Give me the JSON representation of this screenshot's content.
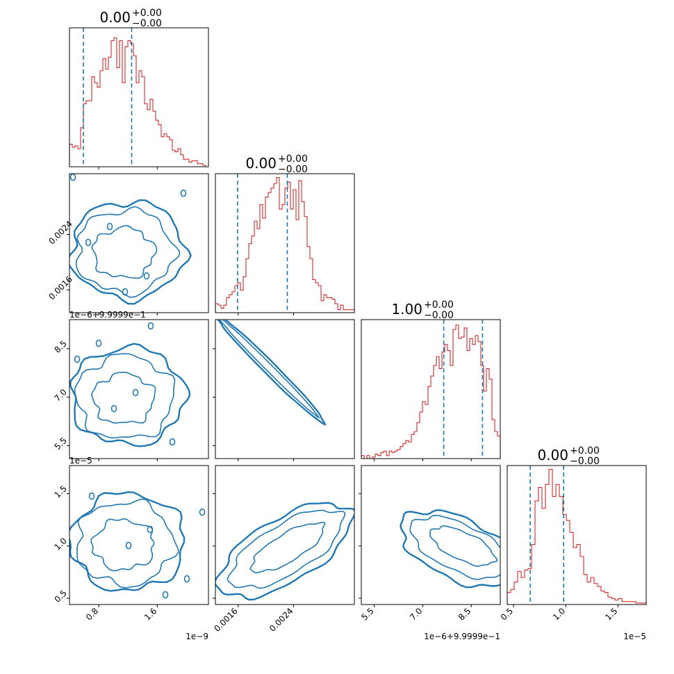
{
  "chart_data": {
    "type": "corner",
    "parameters": 4,
    "titles": [
      {
        "value": "0.00",
        "plus": "+0.00",
        "minus": "−0.00"
      },
      {
        "value": "0.00",
        "plus": "+0.00",
        "minus": "−0.00"
      },
      {
        "value": "1.00",
        "plus": "+0.00",
        "minus": "−0.00"
      },
      {
        "value": "0.00",
        "plus": "+0.00",
        "minus": "−0.00"
      }
    ],
    "axes": [
      {
        "range": [
          4e-10,
          2.3e-09
        ],
        "ticks": [
          8e-10,
          1.6e-09
        ],
        "tick_labels": [
          "0.8",
          "1.6"
        ],
        "offset_text": "1e−9"
      },
      {
        "range": [
          0.00127,
          0.00328
        ],
        "ticks": [
          0.0016,
          0.0024
        ],
        "tick_labels": [
          "0.0016",
          "0.0024"
        ],
        "offset_text": ""
      },
      {
        "range": [
          5.1,
          9.4
        ],
        "ticks": [
          5.5,
          7.0,
          8.5
        ],
        "tick_labels": [
          "5.5",
          "7.0",
          "8.5"
        ],
        "offset_text": "1e−6+9.9999e−1"
      },
      {
        "range": [
          0.44,
          1.77
        ],
        "ticks": [
          0.5,
          1.0,
          1.5
        ],
        "tick_labels": [
          "0.5",
          "1.0",
          "1.5"
        ],
        "offset_text": "1e−5"
      }
    ],
    "quantiles": [
      [
        5.9e-10,
        1.25e-09
      ],
      [
        0.00159,
        0.00231
      ],
      [
        7.65,
        8.85
      ],
      [
        0.66,
        0.98
      ]
    ],
    "histograms": [
      [
        0.15,
        0.13,
        0.14,
        0.12,
        0.26,
        0.42,
        0.44,
        0.44,
        0.6,
        0.56,
        0.53,
        0.64,
        0.72,
        0.65,
        0.73,
        0.84,
        0.86,
        0.66,
        0.84,
        0.56,
        0.8,
        0.84,
        0.82,
        0.74,
        0.56,
        0.64,
        0.6,
        0.42,
        0.38,
        0.45,
        0.37,
        0.31,
        0.28,
        0.2,
        0.22,
        0.2,
        0.18,
        0.11,
        0.1,
        0.12,
        0.08,
        0.05,
        0.05,
        0.03,
        0.04,
        0.04,
        0.02,
        0.02,
        0.01,
        0.0
      ],
      [
        0.06,
        0.05,
        0.03,
        0.05,
        0.1,
        0.12,
        0.14,
        0.18,
        0.2,
        0.15,
        0.24,
        0.36,
        0.46,
        0.51,
        0.61,
        0.56,
        0.72,
        0.63,
        0.77,
        0.8,
        0.83,
        0.86,
        0.9,
        0.69,
        0.72,
        0.83,
        0.87,
        0.69,
        0.82,
        0.62,
        0.88,
        0.74,
        0.64,
        0.44,
        0.36,
        0.22,
        0.2,
        0.18,
        0.08,
        0.12,
        0.1,
        0.1,
        0.09,
        0.06,
        0.02,
        0.05,
        0.02,
        0.02,
        0.02,
        0.02
      ],
      [
        0.02,
        0.0,
        0.02,
        0.0,
        0.01,
        0.03,
        0.02,
        0.04,
        0.05,
        0.02,
        0.05,
        0.04,
        0.05,
        0.06,
        0.08,
        0.1,
        0.12,
        0.11,
        0.16,
        0.18,
        0.24,
        0.31,
        0.38,
        0.36,
        0.48,
        0.55,
        0.62,
        0.68,
        0.6,
        0.71,
        0.76,
        0.72,
        0.62,
        0.86,
        0.89,
        0.8,
        0.81,
        0.87,
        0.72,
        0.8,
        0.76,
        0.82,
        0.78,
        0.62,
        0.45,
        0.6,
        0.53,
        0.26,
        0.18,
        0.15
      ],
      [
        0.08,
        0.1,
        0.15,
        0.22,
        0.18,
        0.23,
        0.24,
        0.4,
        0.69,
        0.78,
        0.64,
        0.8,
        0.9,
        0.72,
        0.8,
        0.72,
        0.6,
        0.56,
        0.48,
        0.38,
        0.4,
        0.32,
        0.2,
        0.15,
        0.18,
        0.14,
        0.12,
        0.09,
        0.08,
        0.05,
        0.04,
        0.03,
        0.04,
        0.02,
        0.02,
        0.02,
        0.02,
        0.01,
        0.01,
        0.01
      ]
    ],
    "contour_panels": [
      {
        "row": 1,
        "col": 0,
        "shape": "blob"
      },
      {
        "row": 2,
        "col": 0,
        "shape": "blob"
      },
      {
        "row": 2,
        "col": 1,
        "shape": "diagonal"
      },
      {
        "row": 3,
        "col": 0,
        "shape": "blob"
      },
      {
        "row": 3,
        "col": 1,
        "shape": "rising"
      },
      {
        "row": 3,
        "col": 2,
        "shape": "falling"
      }
    ],
    "colors": {
      "histogram": "#d62728",
      "quantile": "#1f77b4",
      "contour": "#1f77b4",
      "frame": "#000000"
    }
  }
}
